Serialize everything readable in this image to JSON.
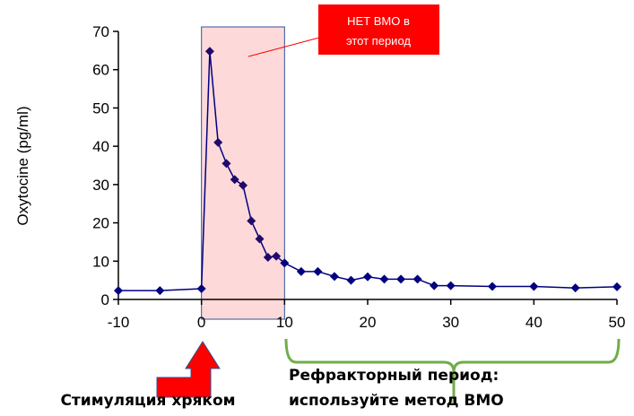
{
  "chart_data": {
    "type": "line",
    "title": "",
    "xlabel": "",
    "ylabel": "Oxytocine (pg/ml)",
    "xlim": [
      -10,
      50
    ],
    "ylim": [
      0,
      70
    ],
    "xticks": [
      "-10",
      "0",
      "10",
      "20",
      "30",
      "40",
      "50"
    ],
    "yticks": [
      "0",
      "10",
      "20",
      "30",
      "40",
      "50",
      "60",
      "70"
    ],
    "grid": false,
    "series": [
      {
        "name": "Oxytocine",
        "color": "#000080",
        "x": [
          -10,
          -5,
          0,
          1,
          2,
          3,
          4,
          5,
          6,
          7,
          8,
          9,
          10,
          12,
          14,
          16,
          18,
          20,
          22,
          24,
          26,
          28,
          30,
          35,
          40,
          45,
          50
        ],
        "y": [
          2.3,
          2.3,
          2.8,
          64.8,
          41,
          35.5,
          31.3,
          29.8,
          20.5,
          15.8,
          11,
          11.3,
          9.5,
          7.3,
          7.3,
          6,
          5,
          5.9,
          5.3,
          5.3,
          5.3,
          3.6,
          3.6,
          3.4,
          3.4,
          3,
          3.3
        ]
      }
    ],
    "highlight_range": {
      "x": [
        0,
        10
      ],
      "color": "#fdd9da"
    },
    "annotations": {
      "callout_line1": "НЕТ ВМО в",
      "callout_line2": "этот период",
      "stimulation": "Стимуляция хряком",
      "refractory_line1": "Рефракторный период:",
      "refractory_line2": "используйте метод ВМО"
    }
  }
}
